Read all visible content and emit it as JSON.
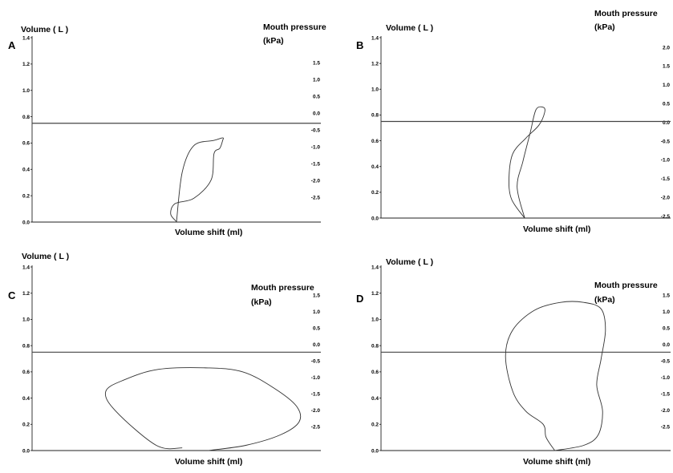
{
  "chart_data": [
    {
      "panel": "A",
      "type": "line",
      "left_axis_label": "Volume ( L )",
      "right_axis_label": [
        "Mouth pressure",
        "(kPa)"
      ],
      "xlabel": "Volume shift (ml)",
      "left_ticks": [
        "0.0",
        "0.2",
        "0.4",
        "0.6",
        "0.8",
        "1.0",
        "1.2",
        "1.4"
      ],
      "right_ticks": [
        "1.5",
        "1.0",
        "0.5",
        "0.0",
        "-0.5",
        "-1.0",
        "-1.5",
        "-2.0",
        "-2.5"
      ],
      "ylim_left": [
        0,
        1.4
      ],
      "ylim_right": [
        -2.5,
        2.5
      ],
      "xlim": [
        0,
        10
      ],
      "zero_pressure_line": 0.75,
      "series": [
        {
          "x": [
            5.02,
            4.8,
            4.95,
            5.6,
            6.2,
            6.3,
            6.5,
            6.6,
            6.6,
            6.3,
            5.6,
            5.2,
            5.0
          ],
          "y": [
            0.0,
            0.06,
            0.14,
            0.18,
            0.32,
            0.52,
            0.56,
            0.62,
            0.64,
            0.62,
            0.58,
            0.38,
            0.0
          ]
        }
      ]
    },
    {
      "panel": "B",
      "type": "line",
      "left_axis_label": "Volume ( L )",
      "right_axis_label": [
        "Mouth pressure",
        "(kPa)"
      ],
      "xlabel": "Volume shift (ml)",
      "left_ticks": [
        "0.0",
        "0.2",
        "0.4",
        "0.6",
        "0.8",
        "1.0",
        "1.2",
        "1.4"
      ],
      "right_ticks": [
        "2.0",
        "1.5",
        "1.0",
        "0.5",
        "0.0",
        "-0.5",
        "-1.0",
        "-1.5",
        "-2.0",
        "-2.5"
      ],
      "ylim_left": [
        0,
        1.4
      ],
      "ylim_right": [
        -2.5,
        2.5
      ],
      "xlim": [
        0,
        10
      ],
      "zero_pressure_line": 0.75,
      "series": [
        {
          "x": [
            4.96,
            4.5,
            4.42,
            4.55,
            5.0,
            5.45,
            5.65,
            5.6,
            5.35,
            5.15,
            4.9,
            4.7,
            4.96
          ],
          "y": [
            0.0,
            0.15,
            0.32,
            0.5,
            0.62,
            0.72,
            0.82,
            0.86,
            0.84,
            0.66,
            0.44,
            0.24,
            0.0
          ]
        }
      ]
    },
    {
      "panel": "C",
      "type": "line",
      "left_axis_label": "Volume ( L )",
      "right_axis_label": [
        "Mouth pressure",
        "(kPa)"
      ],
      "xlabel": "Volume shift (ml)",
      "left_ticks": [
        "0.0",
        "0.2",
        "0.4",
        "0.6",
        "0.8",
        "1.0",
        "1.2",
        "1.4"
      ],
      "right_ticks": [
        "1.5",
        "1.0",
        "0.5",
        "0.0",
        "-0.5",
        "-1.0",
        "-1.5",
        "-2.0",
        "-2.5"
      ],
      "ylim_left": [
        0,
        1.4
      ],
      "ylim_right": [
        -2.5,
        2.5
      ],
      "xlim": [
        0,
        10
      ],
      "zero_pressure_line": 0.75,
      "series": [
        {
          "x": [
            6.1,
            7.4,
            8.6,
            9.25,
            9.15,
            8.35,
            7.3,
            6.1,
            4.4,
            3.2,
            2.55,
            2.9,
            4.3,
            5.2
          ],
          "y": [
            0.0,
            0.04,
            0.12,
            0.22,
            0.34,
            0.48,
            0.6,
            0.63,
            0.62,
            0.54,
            0.45,
            0.3,
            0.04,
            0.02
          ]
        }
      ]
    },
    {
      "panel": "D",
      "type": "line",
      "left_axis_label": "Volume ( L )",
      "right_axis_label": [
        "Mouth pressure",
        "(kPa)"
      ],
      "xlabel": "Volume shift (ml)",
      "left_ticks": [
        "0.0",
        "0.2",
        "0.4",
        "0.6",
        "0.8",
        "1.0",
        "1.2",
        "1.4"
      ],
      "right_ticks": [
        "1.5",
        "1.0",
        "0.5",
        "0.0",
        "-0.5",
        "-1.0",
        "-1.5",
        "-2.0",
        "-2.5"
      ],
      "ylim_left": [
        0,
        1.4
      ],
      "ylim_right": [
        -2.5,
        2.5
      ],
      "xlim": [
        0,
        10
      ],
      "zero_pressure_line": 0.75,
      "series": [
        {
          "x": [
            6.0,
            7.0,
            7.5,
            7.65,
            7.45,
            7.6,
            7.75,
            7.6,
            7.0,
            6.2,
            5.3,
            4.55,
            4.3,
            4.55,
            5.0,
            5.6,
            5.7,
            6.0
          ],
          "y": [
            0.0,
            0.04,
            0.12,
            0.3,
            0.5,
            0.7,
            0.92,
            1.08,
            1.13,
            1.13,
            1.07,
            0.92,
            0.72,
            0.45,
            0.3,
            0.2,
            0.1,
            0.0
          ]
        }
      ]
    }
  ]
}
